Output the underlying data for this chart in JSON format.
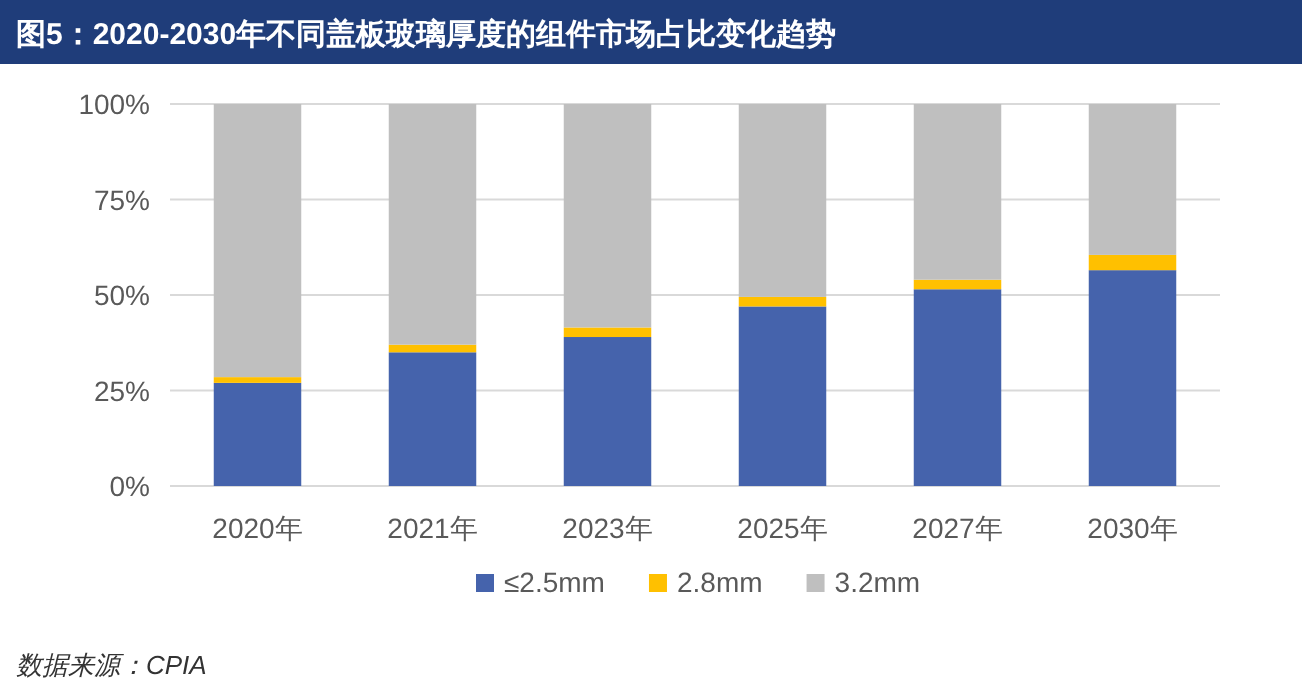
{
  "chart_data": {
    "type": "bar",
    "stacked": true,
    "title": "图5：2020-2030年不同盖板玻璃厚度的组件市场占比变化趋势",
    "categories": [
      "2020年",
      "2021年",
      "2023年",
      "2025年",
      "2027年",
      "2030年"
    ],
    "series": [
      {
        "name": "≤2.5mm",
        "color": "#4563ac",
        "values": [
          27,
          35,
          39,
          47,
          51.5,
          56.5
        ]
      },
      {
        "name": "2.8mm",
        "color": "#ffc000",
        "values": [
          1.5,
          2,
          2.5,
          2.5,
          2.5,
          4
        ]
      },
      {
        "name": "3.2mm",
        "color": "#bfbfbf",
        "values": [
          71.5,
          63,
          58.5,
          50.5,
          46,
          39.5
        ]
      }
    ],
    "ylim": [
      0,
      100
    ],
    "yticks": [
      {
        "value": 0,
        "label": "0%"
      },
      {
        "value": 25,
        "label": "25%"
      },
      {
        "value": 50,
        "label": "50%"
      },
      {
        "value": 75,
        "label": "75%"
      },
      {
        "value": 100,
        "label": "100%"
      }
    ],
    "grid": "y",
    "legend": "bottom",
    "annotations": [
      "数据来源：CPIA"
    ]
  }
}
